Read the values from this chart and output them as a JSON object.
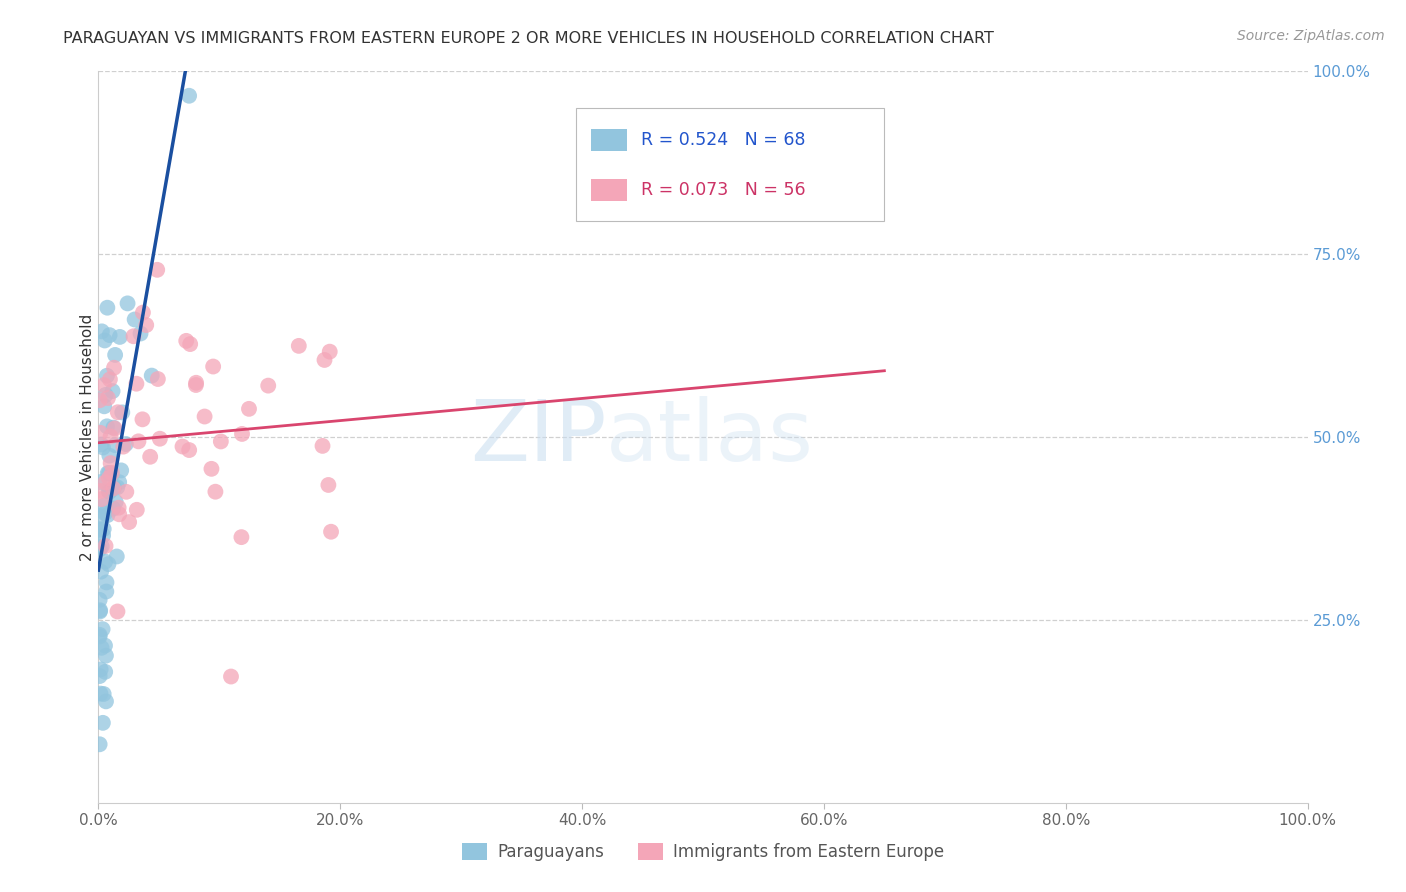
{
  "title": "PARAGUAYAN VS IMMIGRANTS FROM EASTERN EUROPE 2 OR MORE VEHICLES IN HOUSEHOLD CORRELATION CHART",
  "source": "Source: ZipAtlas.com",
  "ylabel": "2 or more Vehicles in Household",
  "right_yticks": [
    "100.0%",
    "75.0%",
    "50.0%",
    "25.0%"
  ],
  "right_ytick_vals": [
    1.0,
    0.75,
    0.5,
    0.25
  ],
  "legend1_label": "Paraguayans",
  "legend2_label": "Immigrants from Eastern Europe",
  "R1": 0.524,
  "N1": 68,
  "R2": 0.073,
  "N2": 56,
  "blue_color": "#92c5de",
  "pink_color": "#f4a6b8",
  "blue_line_color": "#1a4fa0",
  "pink_line_color": "#d9456e",
  "xlim": [
    0.0,
    1.0
  ],
  "ylim": [
    0.0,
    1.0
  ],
  "watermark_zip": "ZIP",
  "watermark_atlas": "atlas",
  "background_color": "#ffffff",
  "grid_color": "#d0d0d0",
  "xtick_color": "#aaaaaa",
  "ytick_right_color": "#5b9bd5",
  "title_color": "#333333",
  "source_color": "#999999",
  "legend_text_color": "#2255aa"
}
